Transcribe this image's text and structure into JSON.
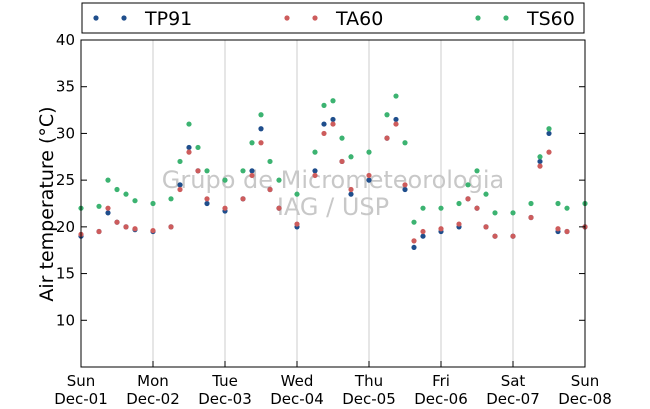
{
  "chart_data": {
    "type": "scatter",
    "ylabel": "Air temperature (°C)",
    "xlabel": "",
    "ylim": [
      5,
      40
    ],
    "yticks": [
      10,
      15,
      20,
      25,
      30,
      35,
      40
    ],
    "xlim": [
      "2013-12-01 00:00",
      "2013-12-08 00:00"
    ],
    "xticks": [
      {
        "weekday": "Sun",
        "date": "Dec-01"
      },
      {
        "weekday": "Mon",
        "date": "Dec-02"
      },
      {
        "weekday": "Tue",
        "date": "Dec-03"
      },
      {
        "weekday": "Wed",
        "date": "Dec-04"
      },
      {
        "weekday": "Thu",
        "date": "Dec-05"
      },
      {
        "weekday": "Fri",
        "date": "Dec-06"
      },
      {
        "weekday": "Sat",
        "date": "Dec-07"
      },
      {
        "weekday": "Sun",
        "date": "Dec-08"
      }
    ],
    "grid": "vertical",
    "legend_position": "top",
    "watermark": [
      "Grupo de Micrometeorologia",
      "IAG / USP"
    ],
    "series": [
      {
        "name": "TP91",
        "color": "#1f4e8c",
        "x": [
          "2013-12-01 00:00",
          "2013-12-01 06:00",
          "2013-12-01 09:00",
          "2013-12-01 12:00",
          "2013-12-01 15:00",
          "2013-12-01 18:00",
          "2013-12-02 00:00",
          "2013-12-02 06:00",
          "2013-12-02 09:00",
          "2013-12-02 12:00",
          "2013-12-02 15:00",
          "2013-12-02 18:00",
          "2013-12-03 00:00",
          "2013-12-03 06:00",
          "2013-12-03 09:00",
          "2013-12-03 12:00",
          "2013-12-03 15:00",
          "2013-12-03 18:00",
          "2013-12-04 00:00",
          "2013-12-04 06:00",
          "2013-12-04 09:00",
          "2013-12-04 12:00",
          "2013-12-04 15:00",
          "2013-12-04 18:00",
          "2013-12-05 00:00",
          "2013-12-05 06:00",
          "2013-12-05 09:00",
          "2013-12-05 12:00",
          "2013-12-05 15:00",
          "2013-12-05 18:00",
          "2013-12-06 00:00",
          "2013-12-06 06:00",
          "2013-12-06 09:00",
          "2013-12-06 12:00",
          "2013-12-06 15:00",
          "2013-12-06 18:00",
          "2013-12-07 00:00",
          "2013-12-07 06:00",
          "2013-12-07 09:00",
          "2013-12-07 12:00",
          "2013-12-07 15:00",
          "2013-12-07 18:00",
          "2013-12-08 00:00"
        ],
        "y": [
          19.0,
          19.5,
          21.5,
          20.5,
          20.0,
          19.7,
          19.5,
          20.0,
          24.5,
          28.5,
          26.0,
          22.5,
          21.7,
          23.0,
          26.0,
          30.5,
          24.0,
          22.0,
          20.0,
          26.0,
          31.0,
          31.5,
          27.0,
          23.5,
          25.0,
          29.5,
          31.5,
          24.0,
          17.8,
          19.0,
          19.5,
          20.0,
          23.0,
          22.0,
          20.0,
          19.0,
          19.0,
          21.0,
          27.0,
          30.0,
          19.5,
          19.5,
          20.0
        ]
      },
      {
        "name": "TA60",
        "color": "#cd5c5c",
        "x": [
          "2013-12-01 00:00",
          "2013-12-01 06:00",
          "2013-12-01 09:00",
          "2013-12-01 12:00",
          "2013-12-01 15:00",
          "2013-12-01 18:00",
          "2013-12-02 00:00",
          "2013-12-02 06:00",
          "2013-12-02 09:00",
          "2013-12-02 12:00",
          "2013-12-02 15:00",
          "2013-12-02 18:00",
          "2013-12-03 00:00",
          "2013-12-03 06:00",
          "2013-12-03 09:00",
          "2013-12-03 12:00",
          "2013-12-03 15:00",
          "2013-12-03 18:00",
          "2013-12-04 00:00",
          "2013-12-04 06:00",
          "2013-12-04 09:00",
          "2013-12-04 12:00",
          "2013-12-04 15:00",
          "2013-12-04 18:00",
          "2013-12-05 00:00",
          "2013-12-05 06:00",
          "2013-12-05 09:00",
          "2013-12-05 12:00",
          "2013-12-05 15:00",
          "2013-12-05 18:00",
          "2013-12-06 00:00",
          "2013-12-06 06:00",
          "2013-12-06 09:00",
          "2013-12-06 12:00",
          "2013-12-06 15:00",
          "2013-12-06 18:00",
          "2013-12-07 00:00",
          "2013-12-07 06:00",
          "2013-12-07 09:00",
          "2013-12-07 12:00",
          "2013-12-07 15:00",
          "2013-12-07 18:00",
          "2013-12-08 00:00"
        ],
        "y": [
          19.2,
          19.5,
          22.0,
          20.5,
          20.0,
          19.8,
          19.6,
          20.0,
          24.0,
          28.0,
          26.0,
          23.0,
          22.0,
          23.0,
          25.5,
          29.0,
          24.0,
          22.0,
          20.3,
          25.5,
          30.0,
          31.0,
          27.0,
          24.0,
          25.5,
          29.5,
          31.0,
          24.5,
          18.5,
          19.5,
          19.8,
          20.3,
          23.0,
          22.0,
          20.0,
          19.0,
          19.0,
          21.0,
          26.5,
          28.0,
          19.8,
          19.5,
          20.0
        ]
      },
      {
        "name": "TS60",
        "color": "#3cb371",
        "x": [
          "2013-12-01 00:00",
          "2013-12-01 06:00",
          "2013-12-01 09:00",
          "2013-12-01 12:00",
          "2013-12-01 15:00",
          "2013-12-01 18:00",
          "2013-12-02 00:00",
          "2013-12-02 06:00",
          "2013-12-02 09:00",
          "2013-12-02 12:00",
          "2013-12-02 15:00",
          "2013-12-02 18:00",
          "2013-12-03 00:00",
          "2013-12-03 06:00",
          "2013-12-03 09:00",
          "2013-12-03 12:00",
          "2013-12-03 15:00",
          "2013-12-03 18:00",
          "2013-12-04 00:00",
          "2013-12-04 06:00",
          "2013-12-04 09:00",
          "2013-12-04 12:00",
          "2013-12-04 15:00",
          "2013-12-04 18:00",
          "2013-12-05 00:00",
          "2013-12-05 06:00",
          "2013-12-05 09:00",
          "2013-12-05 12:00",
          "2013-12-05 15:00",
          "2013-12-05 18:00",
          "2013-12-06 00:00",
          "2013-12-06 06:00",
          "2013-12-06 09:00",
          "2013-12-06 12:00",
          "2013-12-06 15:00",
          "2013-12-06 18:00",
          "2013-12-07 00:00",
          "2013-12-07 06:00",
          "2013-12-07 09:00",
          "2013-12-07 12:00",
          "2013-12-07 15:00",
          "2013-12-07 18:00",
          "2013-12-08 00:00"
        ],
        "y": [
          22.0,
          22.2,
          25.0,
          24.0,
          23.5,
          22.8,
          22.5,
          23.0,
          27.0,
          31.0,
          28.5,
          26.0,
          25.0,
          26.0,
          29.0,
          32.0,
          27.0,
          25.0,
          23.5,
          28.0,
          33.0,
          33.5,
          29.5,
          27.5,
          28.0,
          32.0,
          34.0,
          29.0,
          20.5,
          22.0,
          22.0,
          22.5,
          24.5,
          26.0,
          23.5,
          21.5,
          21.5,
          22.5,
          27.5,
          30.5,
          22.5,
          22.0,
          22.5
        ]
      }
    ]
  }
}
